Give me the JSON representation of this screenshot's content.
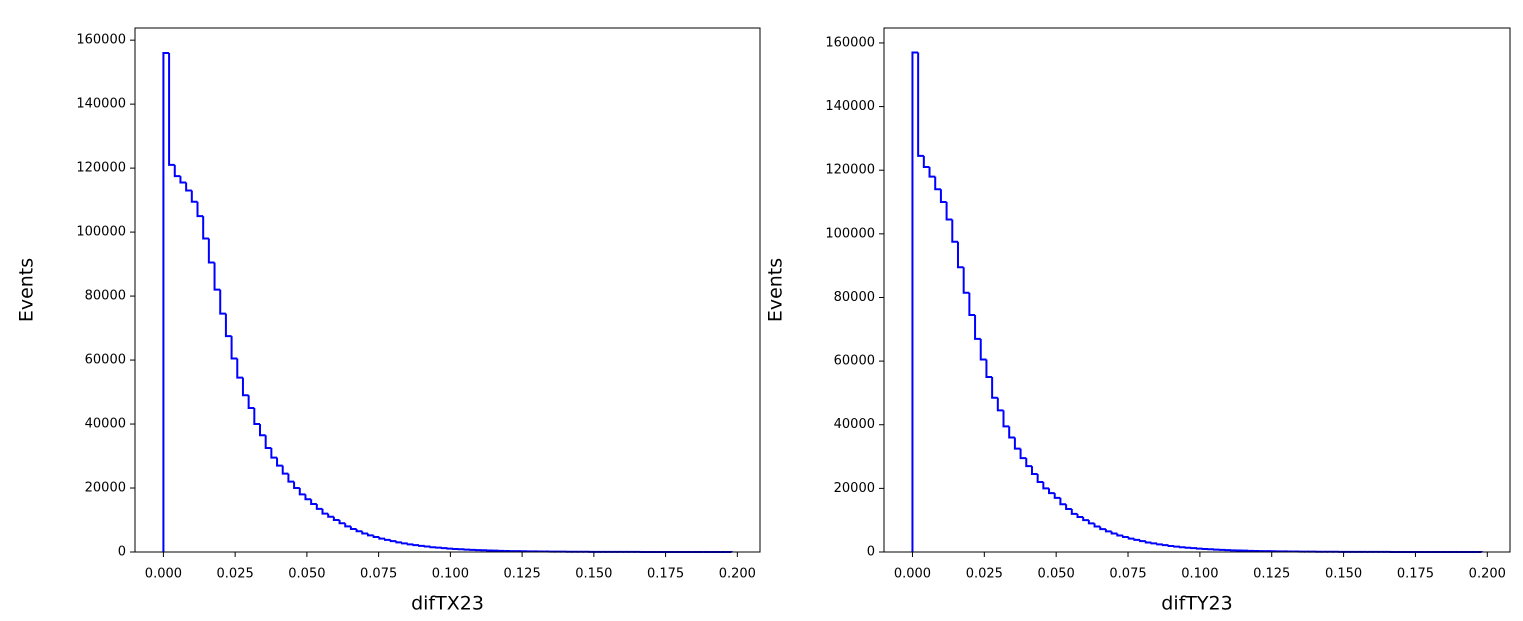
{
  "chart_data": [
    {
      "type": "histogram",
      "xlabel": "difTX23",
      "ylabel": "Events",
      "color": "#0000ff",
      "bins": [
        0,
        0.00198,
        0.00396,
        0.00594,
        0.00792,
        0.0099,
        0.01188,
        0.01386,
        0.01584,
        0.01782,
        0.0198,
        0.02178,
        0.02376,
        0.02574,
        0.02772,
        0.0297,
        0.03168,
        0.03366,
        0.03564,
        0.03762,
        0.0396,
        0.04158,
        0.04356,
        0.04554,
        0.04752,
        0.0495,
        0.05148,
        0.05346,
        0.05544,
        0.05742,
        0.0594,
        0.06138,
        0.06336,
        0.06534,
        0.06732,
        0.0693,
        0.07128,
        0.07326,
        0.07524,
        0.07722,
        0.0792,
        0.08118,
        0.08316,
        0.08514,
        0.08712,
        0.0891,
        0.09108,
        0.09306,
        0.09504,
        0.09702,
        0.099,
        0.10098,
        0.10296,
        0.10494,
        0.10692,
        0.1089,
        0.11088,
        0.11286,
        0.11484,
        0.11682,
        0.1188,
        0.12078,
        0.12276,
        0.12474,
        0.12672,
        0.1287,
        0.13068,
        0.13266,
        0.13464,
        0.13662,
        0.1386,
        0.14058,
        0.14256,
        0.14454,
        0.14652,
        0.1485,
        0.15048,
        0.15246,
        0.15444,
        0.15642,
        0.1584,
        0.16038,
        0.16236,
        0.16434,
        0.16632,
        0.1683,
        0.17028,
        0.17226,
        0.17424,
        0.17622,
        0.1782,
        0.18018,
        0.18216,
        0.18414,
        0.18612,
        0.1881,
        0.19008,
        0.19206,
        0.19404,
        0.19602,
        0.198
      ],
      "values": [
        156000,
        121000,
        117500,
        115500,
        113000,
        109500,
        105000,
        98000,
        90500,
        82000,
        74500,
        67500,
        60500,
        54500,
        49000,
        45000,
        40000,
        36500,
        32500,
        29500,
        27000,
        24500,
        22000,
        20000,
        18000,
        16500,
        15000,
        13500,
        12000,
        11000,
        10000,
        9000,
        8000,
        7200,
        6500,
        5800,
        5200,
        4700,
        4200,
        3800,
        3400,
        3000,
        2700,
        2400,
        2150,
        1900,
        1700,
        1500,
        1350,
        1200,
        1050,
        950,
        850,
        750,
        670,
        600,
        530,
        470,
        420,
        370,
        330,
        290,
        260,
        230,
        200,
        180,
        160,
        140,
        125,
        110,
        100,
        90,
        80,
        70,
        62,
        55,
        49,
        43,
        38,
        34,
        30,
        27,
        24,
        21,
        19,
        17,
        15,
        13,
        12,
        10,
        9,
        8,
        7,
        6,
        5,
        5,
        4,
        4,
        3,
        3
      ],
      "xlim": [
        -0.0099,
        0.2079
      ],
      "ylim": [
        0,
        163800
      ],
      "xticks": [
        {
          "value": 0,
          "label": "0.000"
        },
        {
          "value": 0.025,
          "label": "0.025"
        },
        {
          "value": 0.05,
          "label": "0.050"
        },
        {
          "value": 0.075,
          "label": "0.075"
        },
        {
          "value": 0.1,
          "label": "0.100"
        },
        {
          "value": 0.125,
          "label": "0.125"
        },
        {
          "value": 0.15,
          "label": "0.150"
        },
        {
          "value": 0.175,
          "label": "0.175"
        },
        {
          "value": 0.2,
          "label": "0.200"
        }
      ],
      "yticks": [
        0,
        20000,
        40000,
        60000,
        80000,
        100000,
        120000,
        140000,
        160000
      ]
    },
    {
      "type": "histogram",
      "xlabel": "difTY23",
      "ylabel": "Events",
      "color": "#0000ff",
      "bins": [
        0,
        0.00198,
        0.00396,
        0.00594,
        0.00792,
        0.0099,
        0.01188,
        0.01386,
        0.01584,
        0.01782,
        0.0198,
        0.02178,
        0.02376,
        0.02574,
        0.02772,
        0.0297,
        0.03168,
        0.03366,
        0.03564,
        0.03762,
        0.0396,
        0.04158,
        0.04356,
        0.04554,
        0.04752,
        0.0495,
        0.05148,
        0.05346,
        0.05544,
        0.05742,
        0.0594,
        0.06138,
        0.06336,
        0.06534,
        0.06732,
        0.0693,
        0.07128,
        0.07326,
        0.07524,
        0.07722,
        0.0792,
        0.08118,
        0.08316,
        0.08514,
        0.08712,
        0.0891,
        0.09108,
        0.09306,
        0.09504,
        0.09702,
        0.099,
        0.10098,
        0.10296,
        0.10494,
        0.10692,
        0.1089,
        0.11088,
        0.11286,
        0.11484,
        0.11682,
        0.1188,
        0.12078,
        0.12276,
        0.12474,
        0.12672,
        0.1287,
        0.13068,
        0.13266,
        0.13464,
        0.13662,
        0.1386,
        0.14058,
        0.14256,
        0.14454,
        0.14652,
        0.1485,
        0.15048,
        0.15246,
        0.15444,
        0.15642,
        0.1584,
        0.16038,
        0.16236,
        0.16434,
        0.16632,
        0.1683,
        0.17028,
        0.17226,
        0.17424,
        0.17622,
        0.1782,
        0.18018,
        0.18216,
        0.18414,
        0.18612,
        0.1881,
        0.19008,
        0.19206,
        0.19404,
        0.19602,
        0.198
      ],
      "values": [
        157000,
        124500,
        121000,
        118000,
        114000,
        110000,
        104500,
        97500,
        89500,
        81500,
        74500,
        67000,
        60500,
        55000,
        48500,
        44500,
        39500,
        36000,
        32500,
        29500,
        27000,
        24500,
        22000,
        20000,
        18500,
        17000,
        15000,
        13500,
        12000,
        11000,
        10000,
        9000,
        8000,
        7200,
        6500,
        5800,
        5200,
        4700,
        4200,
        3800,
        3400,
        3000,
        2700,
        2400,
        2150,
        1900,
        1700,
        1500,
        1350,
        1200,
        1050,
        950,
        850,
        750,
        670,
        600,
        530,
        470,
        420,
        370,
        330,
        290,
        260,
        230,
        200,
        180,
        160,
        140,
        125,
        110,
        100,
        90,
        80,
        70,
        62,
        55,
        49,
        43,
        38,
        34,
        30,
        27,
        24,
        21,
        19,
        17,
        15,
        13,
        12,
        10,
        9,
        8,
        7,
        6,
        5,
        5,
        4,
        4,
        3,
        3
      ],
      "xlim": [
        -0.0099,
        0.2079
      ],
      "ylim": [
        0,
        164700
      ],
      "xticks": [
        {
          "value": 0,
          "label": "0.000"
        },
        {
          "value": 0.025,
          "label": "0.025"
        },
        {
          "value": 0.05,
          "label": "0.050"
        },
        {
          "value": 0.075,
          "label": "0.075"
        },
        {
          "value": 0.1,
          "label": "0.100"
        },
        {
          "value": 0.125,
          "label": "0.125"
        },
        {
          "value": 0.15,
          "label": "0.150"
        },
        {
          "value": 0.175,
          "label": "0.175"
        },
        {
          "value": 0.2,
          "label": "0.200"
        }
      ],
      "yticks": [
        0,
        20000,
        40000,
        60000,
        80000,
        100000,
        120000,
        140000,
        160000
      ]
    }
  ]
}
